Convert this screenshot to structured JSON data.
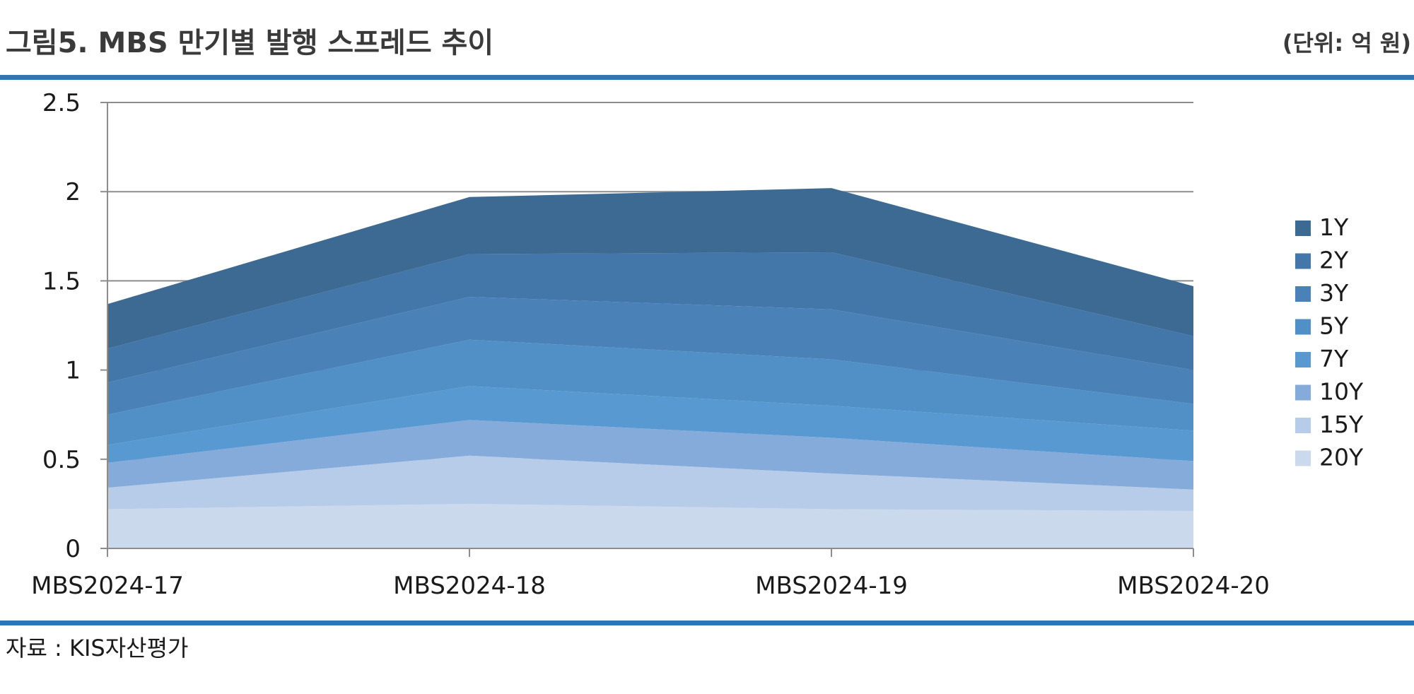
{
  "header": {
    "title": "그림5. MBS 만기별 발행 스프레드 추이",
    "unit": "(단위: 억 원)"
  },
  "footer": {
    "source": "자료 : KIS자산평가"
  },
  "colors": {
    "rule": "#2e75b6",
    "grid": "#8c8c8c",
    "axis": "#8c8c8c"
  },
  "chart_data": {
    "type": "area",
    "stacked": true,
    "categories": [
      "MBS2024-17",
      "MBS2024-18",
      "MBS2024-19",
      "MBS2024-20"
    ],
    "ylim": [
      0,
      2.5
    ],
    "yticks": [
      "0",
      "0.5",
      "1",
      "1.5",
      "2",
      "2.5"
    ],
    "grid": true,
    "legend_position": "right",
    "series": [
      {
        "name": "20Y",
        "color": "#cbd9ec",
        "values": [
          0.22,
          0.25,
          0.22,
          0.21
        ]
      },
      {
        "name": "15Y",
        "color": "#b7cce8",
        "values": [
          0.12,
          0.27,
          0.2,
          0.12
        ]
      },
      {
        "name": "10Y",
        "color": "#85abdb",
        "values": [
          0.14,
          0.2,
          0.2,
          0.16
        ]
      },
      {
        "name": "7Y",
        "color": "#5899d2",
        "values": [
          0.1,
          0.19,
          0.18,
          0.17
        ]
      },
      {
        "name": "5Y",
        "color": "#5190c6",
        "values": [
          0.17,
          0.26,
          0.26,
          0.15
        ]
      },
      {
        "name": "3Y",
        "color": "#4a82b8",
        "values": [
          0.18,
          0.24,
          0.28,
          0.19
        ]
      },
      {
        "name": "2Y",
        "color": "#4377a9",
        "values": [
          0.19,
          0.24,
          0.32,
          0.19
        ]
      },
      {
        "name": "1Y",
        "color": "#3d6a93",
        "values": [
          0.25,
          0.32,
          0.36,
          0.28
        ]
      }
    ]
  }
}
